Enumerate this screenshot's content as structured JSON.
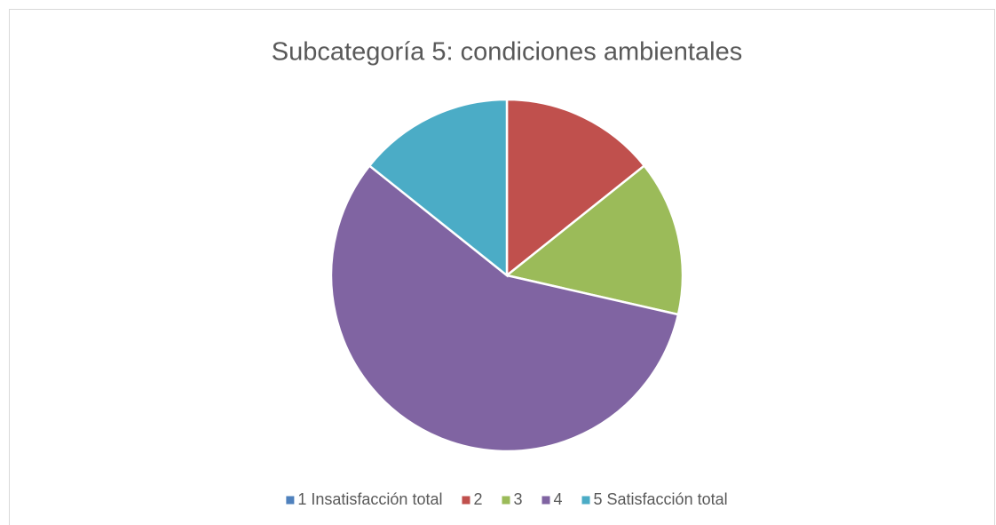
{
  "chart_data": {
    "type": "pie",
    "title": "Subcategoría 5: condiciones ambientales",
    "categories": [
      "1 Insatisfacción total",
      "2",
      "3",
      "4",
      "5 Satisfacción total"
    ],
    "values": [
      0,
      1,
      1,
      4,
      1
    ],
    "colors": [
      "#4f81bd",
      "#c0504d",
      "#9bbb59",
      "#8064a2",
      "#4bacc6"
    ],
    "legend": "bottom"
  }
}
